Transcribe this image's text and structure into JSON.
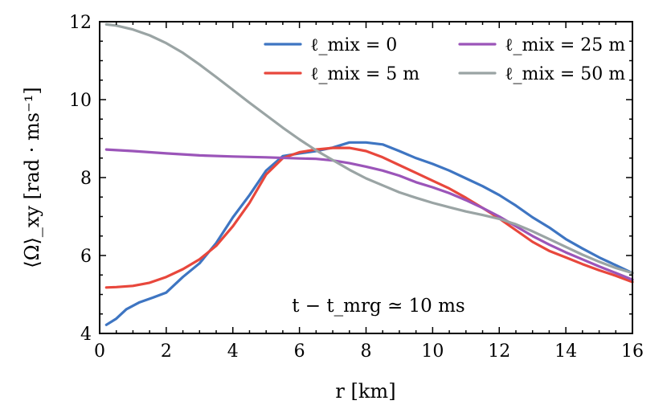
{
  "chart_data": {
    "type": "line",
    "title": "",
    "xlabel": "r [km]",
    "ylabel": "⟨Ω⟩_xy [rad · ms⁻¹]",
    "xlim": [
      0,
      16
    ],
    "ylim": [
      4,
      12
    ],
    "xticks": [
      0,
      2,
      4,
      6,
      8,
      10,
      12,
      14,
      16
    ],
    "yticks": [
      4,
      6,
      8,
      10,
      12
    ],
    "xtick_labels": [
      "0",
      "2",
      "4",
      "6",
      "8",
      "10",
      "12",
      "14",
      "16"
    ],
    "ytick_labels": [
      "4",
      "6",
      "8",
      "10",
      "12"
    ],
    "grid": false,
    "legend_position": "top-right",
    "annotation": "t − t_mrg ≃ 10 ms",
    "series": [
      {
        "name": "ℓ_mix = 0",
        "color": "#3e75c2",
        "x": [
          0.2,
          0.5,
          0.8,
          1.2,
          1.6,
          2.0,
          2.5,
          3.0,
          3.5,
          4.0,
          4.5,
          5.0,
          5.5,
          6.0,
          6.5,
          7.0,
          7.5,
          8.0,
          8.5,
          9.0,
          9.5,
          10.0,
          10.5,
          11.0,
          11.5,
          12.0,
          12.5,
          13.0,
          13.5,
          14.0,
          14.5,
          15.0,
          15.5,
          16.0
        ],
        "y": [
          4.22,
          4.38,
          4.62,
          4.8,
          4.92,
          5.05,
          5.45,
          5.8,
          6.32,
          6.98,
          7.55,
          8.18,
          8.55,
          8.62,
          8.68,
          8.77,
          8.9,
          8.9,
          8.85,
          8.68,
          8.5,
          8.35,
          8.18,
          7.98,
          7.78,
          7.55,
          7.28,
          6.98,
          6.72,
          6.42,
          6.18,
          5.95,
          5.75,
          5.55
        ]
      },
      {
        "name": "ℓ_mix =  5 m",
        "color": "#e8473c",
        "x": [
          0.2,
          0.5,
          1.0,
          1.5,
          2.0,
          2.5,
          3.0,
          3.5,
          4.0,
          4.5,
          5.0,
          5.5,
          6.0,
          6.5,
          7.0,
          7.5,
          8.0,
          8.5,
          9.0,
          9.5,
          10.0,
          10.5,
          11.0,
          11.5,
          12.0,
          12.5,
          13.0,
          13.5,
          14.0,
          14.5,
          15.0,
          15.5,
          16.0
        ],
        "y": [
          5.18,
          5.19,
          5.22,
          5.3,
          5.45,
          5.65,
          5.9,
          6.25,
          6.75,
          7.35,
          8.08,
          8.5,
          8.65,
          8.72,
          8.76,
          8.76,
          8.68,
          8.52,
          8.32,
          8.12,
          7.92,
          7.72,
          7.48,
          7.22,
          6.95,
          6.65,
          6.35,
          6.12,
          5.95,
          5.78,
          5.62,
          5.48,
          5.32
        ]
      },
      {
        "name": "ℓ_mix = 25 m",
        "color": "#9b55b9",
        "x": [
          0.2,
          1.0,
          2.0,
          3.0,
          4.0,
          5.0,
          6.0,
          6.5,
          7.0,
          7.5,
          8.0,
          8.5,
          9.0,
          9.5,
          10.0,
          10.5,
          11.0,
          11.5,
          12.0,
          12.5,
          13.0,
          13.5,
          14.0,
          14.5,
          15.0,
          15.5,
          16.0
        ],
        "y": [
          8.72,
          8.68,
          8.62,
          8.57,
          8.54,
          8.52,
          8.49,
          8.48,
          8.44,
          8.37,
          8.28,
          8.18,
          8.05,
          7.88,
          7.75,
          7.6,
          7.42,
          7.22,
          7.0,
          6.75,
          6.5,
          6.28,
          6.08,
          5.9,
          5.72,
          5.55,
          5.38
        ]
      },
      {
        "name": "ℓ_mix = 50 m",
        "color": "#9aa4a4",
        "x": [
          0.2,
          0.5,
          1.0,
          1.5,
          2.0,
          2.5,
          3.0,
          3.5,
          4.0,
          4.5,
          5.0,
          5.5,
          6.0,
          6.5,
          7.0,
          7.5,
          8.0,
          8.5,
          9.0,
          9.5,
          10.0,
          10.5,
          11.0,
          11.5,
          12.0,
          12.5,
          13.0,
          13.5,
          14.0,
          14.5,
          15.0,
          15.5,
          16.0
        ],
        "y": [
          11.93,
          11.9,
          11.8,
          11.65,
          11.45,
          11.2,
          10.9,
          10.58,
          10.25,
          9.92,
          9.6,
          9.28,
          8.98,
          8.7,
          8.45,
          8.2,
          7.98,
          7.8,
          7.62,
          7.48,
          7.35,
          7.24,
          7.13,
          7.04,
          6.94,
          6.8,
          6.62,
          6.42,
          6.22,
          6.02,
          5.84,
          5.68,
          5.55
        ]
      }
    ]
  }
}
